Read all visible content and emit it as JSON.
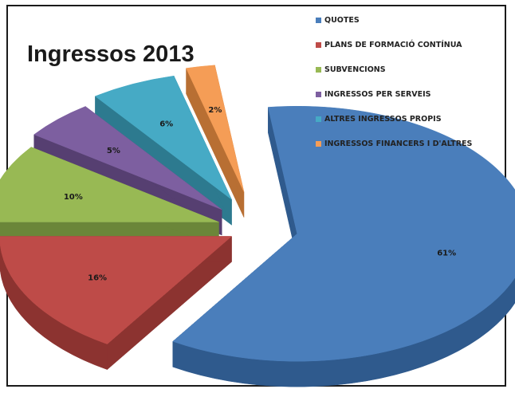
{
  "chart_data": {
    "type": "pie",
    "title": "Ingressos 2013",
    "legend_position": "top-right",
    "slices": [
      {
        "label": "QUOTES",
        "value": 61,
        "value_label": "61%",
        "color": "#4a7ebb",
        "side": "#2f5a8d"
      },
      {
        "label": "PLANS DE FORMACIÓ CONTÍNUA",
        "value": 16,
        "value_label": "16%",
        "color": "#be4b48",
        "side": "#8c3330"
      },
      {
        "label": "SUBVENCIONS",
        "value": 10,
        "value_label": "10%",
        "color": "#98b954",
        "side": "#6b8639"
      },
      {
        "label": "INGRESSOS PER SERVEIS",
        "value": 5,
        "value_label": "5%",
        "color": "#7d5fa0",
        "side": "#563f71"
      },
      {
        "label": "ALTRES INGRESSOS PROPIS",
        "value": 6,
        "value_label": "6%",
        "color": "#46aac5",
        "side": "#2d7a8f"
      },
      {
        "label": "INGRESSOS FINANCERS I D'ALTRES",
        "value": 2,
        "value_label": "2%",
        "color": "#f59d56",
        "side": "#b86f33"
      }
    ]
  }
}
